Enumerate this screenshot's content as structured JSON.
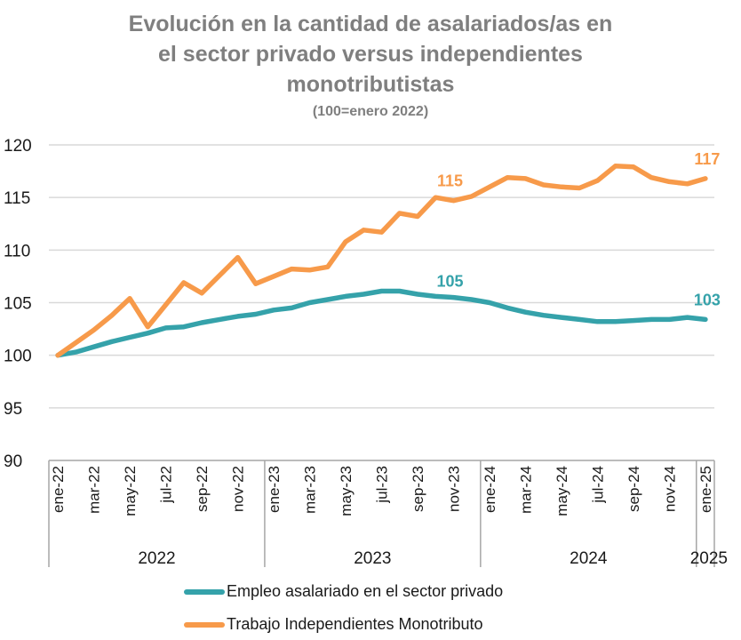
{
  "chart_data": {
    "type": "line",
    "title_lines": [
      "Evolución en la cantidad de asalariados/as en",
      "el sector privado versus independientes",
      "monotributistas"
    ],
    "subtitle": "(100=enero 2022)",
    "xlabel": "",
    "ylabel": "",
    "ylim": [
      90,
      120
    ],
    "yticks": [
      "90",
      "95",
      "100",
      "105",
      "110",
      "115",
      "120"
    ],
    "grid": true,
    "legend_position": "bottom",
    "x": [
      "ene-22",
      "feb-22",
      "mar-22",
      "abr-22",
      "may-22",
      "jun-22",
      "jul-22",
      "ago-22",
      "sep-22",
      "oct-22",
      "nov-22",
      "dic-22",
      "ene-23",
      "feb-23",
      "mar-23",
      "abr-23",
      "may-23",
      "jun-23",
      "jul-23",
      "ago-23",
      "sep-23",
      "oct-23",
      "nov-23",
      "dic-23",
      "ene-24",
      "feb-24",
      "mar-24",
      "abr-24",
      "may-24",
      "jun-24",
      "jul-24",
      "ago-24",
      "sep-24",
      "oct-24",
      "nov-24",
      "dic-24",
      "ene-25"
    ],
    "tick_labels": [
      "ene-22",
      "mar-22",
      "may-22",
      "jul-22",
      "sep-22",
      "nov-22",
      "ene-23",
      "mar-23",
      "may-23",
      "jul-23",
      "sep-23",
      "nov-23",
      "ene-24",
      "mar-24",
      "may-24",
      "jul-24",
      "sep-24",
      "nov-24",
      "ene-25"
    ],
    "year_groups": [
      {
        "label": "2022",
        "months": 12
      },
      {
        "label": "2023",
        "months": 12
      },
      {
        "label": "2024",
        "months": 12
      },
      {
        "label": "2025",
        "months": 1
      }
    ],
    "series": [
      {
        "name": "Empleo asalariado en el sector privado",
        "color": "#35a2aa",
        "values": [
          100.0,
          100.3,
          100.8,
          101.3,
          101.7,
          102.1,
          102.6,
          102.7,
          103.1,
          103.4,
          103.7,
          103.9,
          104.3,
          104.5,
          105.0,
          105.3,
          105.6,
          105.8,
          106.1,
          106.1,
          105.8,
          105.6,
          105.5,
          105.3,
          105.0,
          104.5,
          104.1,
          103.8,
          103.6,
          103.4,
          103.2,
          103.2,
          103.3,
          103.4,
          103.4,
          103.6,
          103.4
        ],
        "annotations": [
          {
            "index": 22,
            "text": "105"
          },
          {
            "index": 36,
            "text": "103"
          }
        ]
      },
      {
        "name": "Trabajo Independientes Monotributo",
        "color": "#f79a4a",
        "values": [
          100.0,
          101.2,
          102.4,
          103.8,
          105.4,
          102.7,
          104.8,
          106.9,
          105.9,
          107.6,
          109.3,
          106.8,
          107.5,
          108.2,
          108.1,
          108.4,
          110.8,
          111.9,
          111.7,
          113.5,
          113.2,
          115.0,
          114.7,
          115.1,
          116.0,
          116.9,
          116.8,
          116.2,
          116.0,
          115.9,
          116.6,
          118.0,
          117.9,
          116.9,
          116.5,
          116.3,
          116.8
        ],
        "annotations": [
          {
            "index": 22,
            "text": "115"
          },
          {
            "index": 36,
            "text": "117"
          }
        ]
      }
    ]
  }
}
